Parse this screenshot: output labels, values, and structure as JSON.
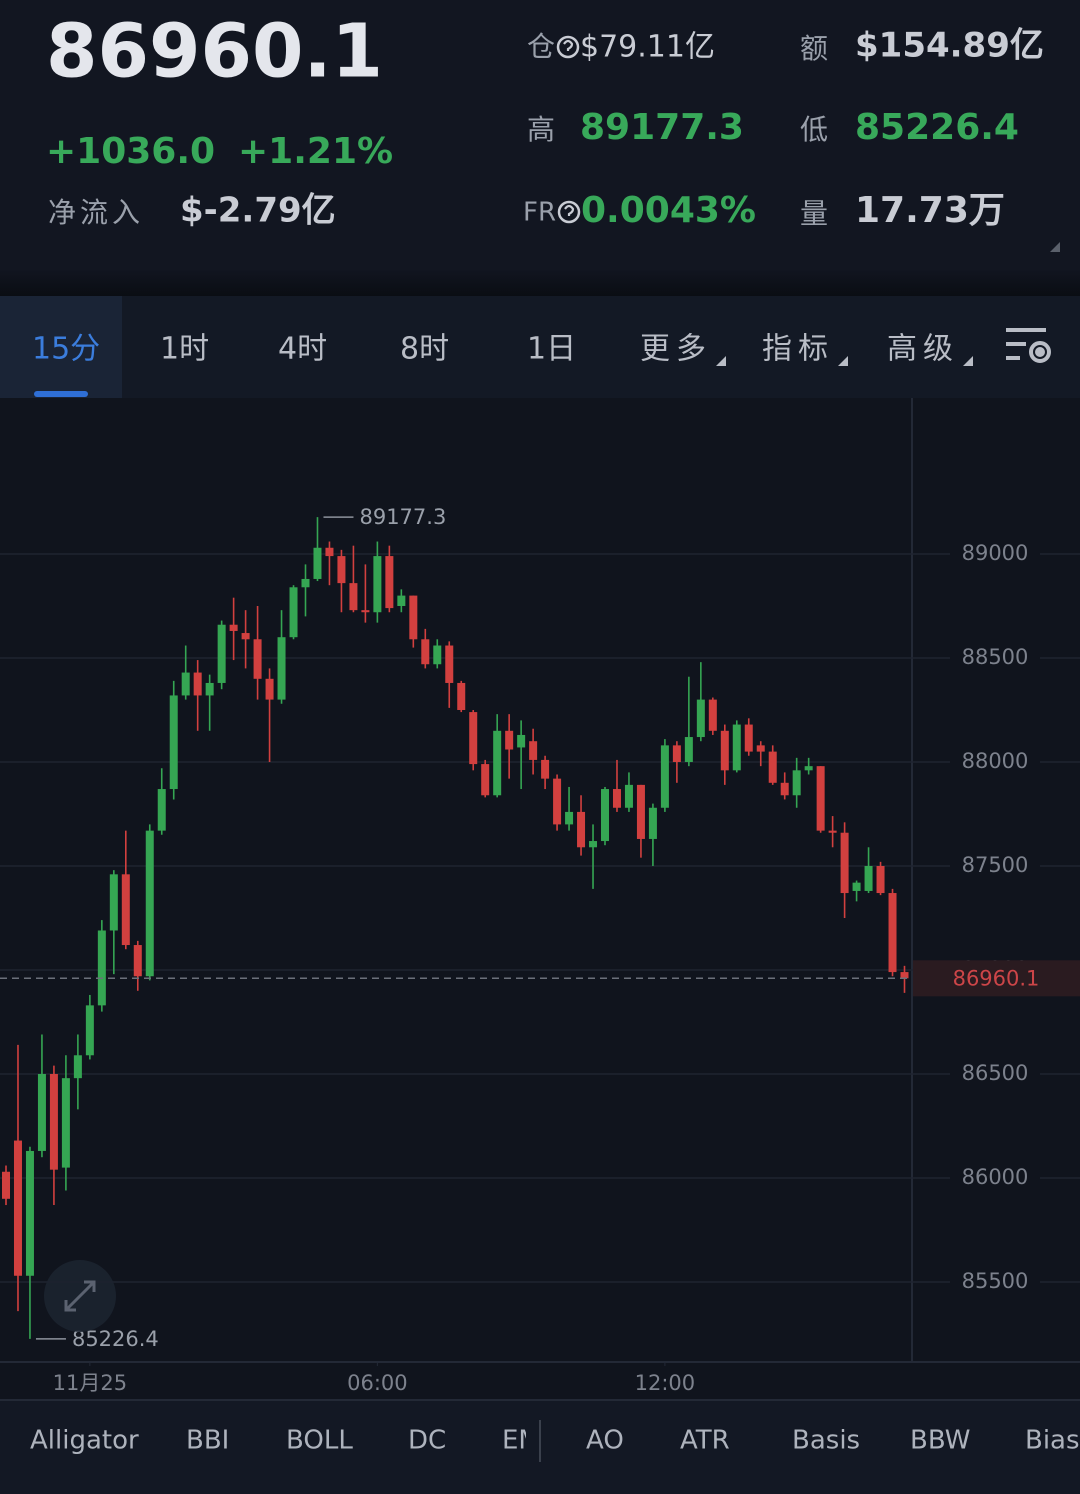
{
  "header": {
    "price": "86960.1",
    "change": "+1036.0",
    "change_pct": "+1.21%",
    "netflow_label": "净流入",
    "netflow": "$-2.79亿",
    "oi_label": "仓",
    "oi": "$79.11亿",
    "turnover_label": "额",
    "turnover": "$154.89亿",
    "high_label": "高",
    "high": "89177.3",
    "low_label": "低",
    "low": "85226.4",
    "fr_label": "FR",
    "fr": "0.0043%",
    "volume_label": "量",
    "volume": "17.73万"
  },
  "tabs": [
    "15分",
    "1时",
    "4时",
    "8时",
    "1日",
    "更多",
    "指标",
    "高级"
  ],
  "indicators": [
    "Alligator",
    "BBI",
    "BOLL",
    "DC",
    "EM",
    "AO",
    "ATR",
    "Basis",
    "BBW",
    "Bias"
  ],
  "chart_data": {
    "type": "candlestick",
    "up_color": "#35a653",
    "down_color": "#d2403f",
    "ylim": [
      85125,
      89750
    ],
    "yticks": [
      85500,
      86000,
      86500,
      87000,
      87500,
      88000,
      88500,
      89000
    ],
    "xticks": [
      {
        "value": 7,
        "label": "11月25"
      },
      {
        "value": 31,
        "label": "06:00"
      },
      {
        "value": 55,
        "label": "12:00"
      }
    ],
    "high_marker": 89177.3,
    "low_marker": 85226.4,
    "last_price": 86960.1,
    "open": [
      86030,
      86180,
      85530,
      86130,
      86500,
      86050,
      86480,
      86590,
      86830,
      87190,
      87460,
      87120,
      86970,
      87670,
      87870,
      88320,
      88430,
      88320,
      88380,
      88660,
      88620,
      88590,
      88400,
      88300,
      88600,
      88840,
      88880,
      89030,
      88990,
      88860,
      88730,
      88720,
      88990,
      88750,
      88800,
      88590,
      88470,
      88560,
      88380,
      88240,
      87990,
      87840,
      88150,
      88070,
      88100,
      88010,
      87920,
      87700,
      87760,
      87590,
      87620,
      87870,
      87780,
      87890,
      87630,
      87780,
      88080,
      88000,
      88120,
      88300,
      88150,
      87960,
      88180,
      88080,
      88050,
      87900,
      87840,
      87960,
      87980,
      87670,
      87660,
      87380,
      87380,
      87500,
      87370,
      86990
    ],
    "high": [
      86060,
      86640,
      86150,
      86690,
      86540,
      86590,
      86690,
      86880,
      87240,
      87480,
      87670,
      87140,
      87700,
      87970,
      88390,
      88560,
      88490,
      88420,
      88680,
      88790,
      88730,
      88750,
      88450,
      88730,
      88850,
      88950,
      89177.3,
      89060,
      89020,
      89040,
      88950,
      89060,
      89040,
      88830,
      88800,
      88640,
      88590,
      88580,
      88390,
      88250,
      88010,
      88230,
      88230,
      88200,
      88160,
      88030,
      87940,
      87880,
      87840,
      87700,
      87880,
      88010,
      87950,
      87890,
      87800,
      88110,
      88100,
      88410,
      88480,
      88310,
      88180,
      88200,
      88210,
      88100,
      88080,
      87950,
      88020,
      88020,
      87980,
      87740,
      87710,
      87430,
      87590,
      87520,
      87390,
      87020
    ],
    "low": [
      85870,
      85360,
      85226.4,
      86100,
      85870,
      85940,
      86330,
      86570,
      86800,
      86980,
      87100,
      86900,
      86950,
      87650,
      87820,
      88300,
      88150,
      88150,
      88350,
      88490,
      88450,
      88300,
      88000,
      88280,
      88590,
      88700,
      88870,
      88850,
      88720,
      88720,
      88670,
      88670,
      88720,
      88720,
      88550,
      88450,
      88450,
      88260,
      88240,
      87960,
      87830,
      87830,
      87920,
      87870,
      87940,
      87870,
      87670,
      87670,
      87550,
      87390,
      87600,
      87760,
      87760,
      87540,
      87500,
      87760,
      87900,
      87980,
      88100,
      88130,
      87890,
      87950,
      88030,
      87980,
      87890,
      87820,
      87780,
      87940,
      87660,
      87590,
      87250,
      87330,
      87370,
      87360,
      86970,
      86890
    ],
    "close": [
      85900,
      85530,
      86130,
      86500,
      86040,
      86480,
      86590,
      86830,
      87190,
      87460,
      87120,
      86970,
      87670,
      87870,
      88320,
      88430,
      88320,
      88380,
      88660,
      88630,
      88590,
      88400,
      88300,
      88600,
      88840,
      88880,
      89030,
      88990,
      88860,
      88730,
      88720,
      88990,
      88740,
      88800,
      88590,
      88470,
      88560,
      88380,
      88250,
      87990,
      87840,
      88150,
      88060,
      88130,
      88010,
      87920,
      87700,
      87760,
      87590,
      87620,
      87870,
      87780,
      87890,
      87630,
      87780,
      88080,
      88000,
      88120,
      88300,
      88150,
      87960,
      88180,
      88050,
      88050,
      87900,
      87840,
      87960,
      87980,
      87670,
      87660,
      87370,
      87420,
      87500,
      87370,
      86990,
      86960.1
    ]
  }
}
